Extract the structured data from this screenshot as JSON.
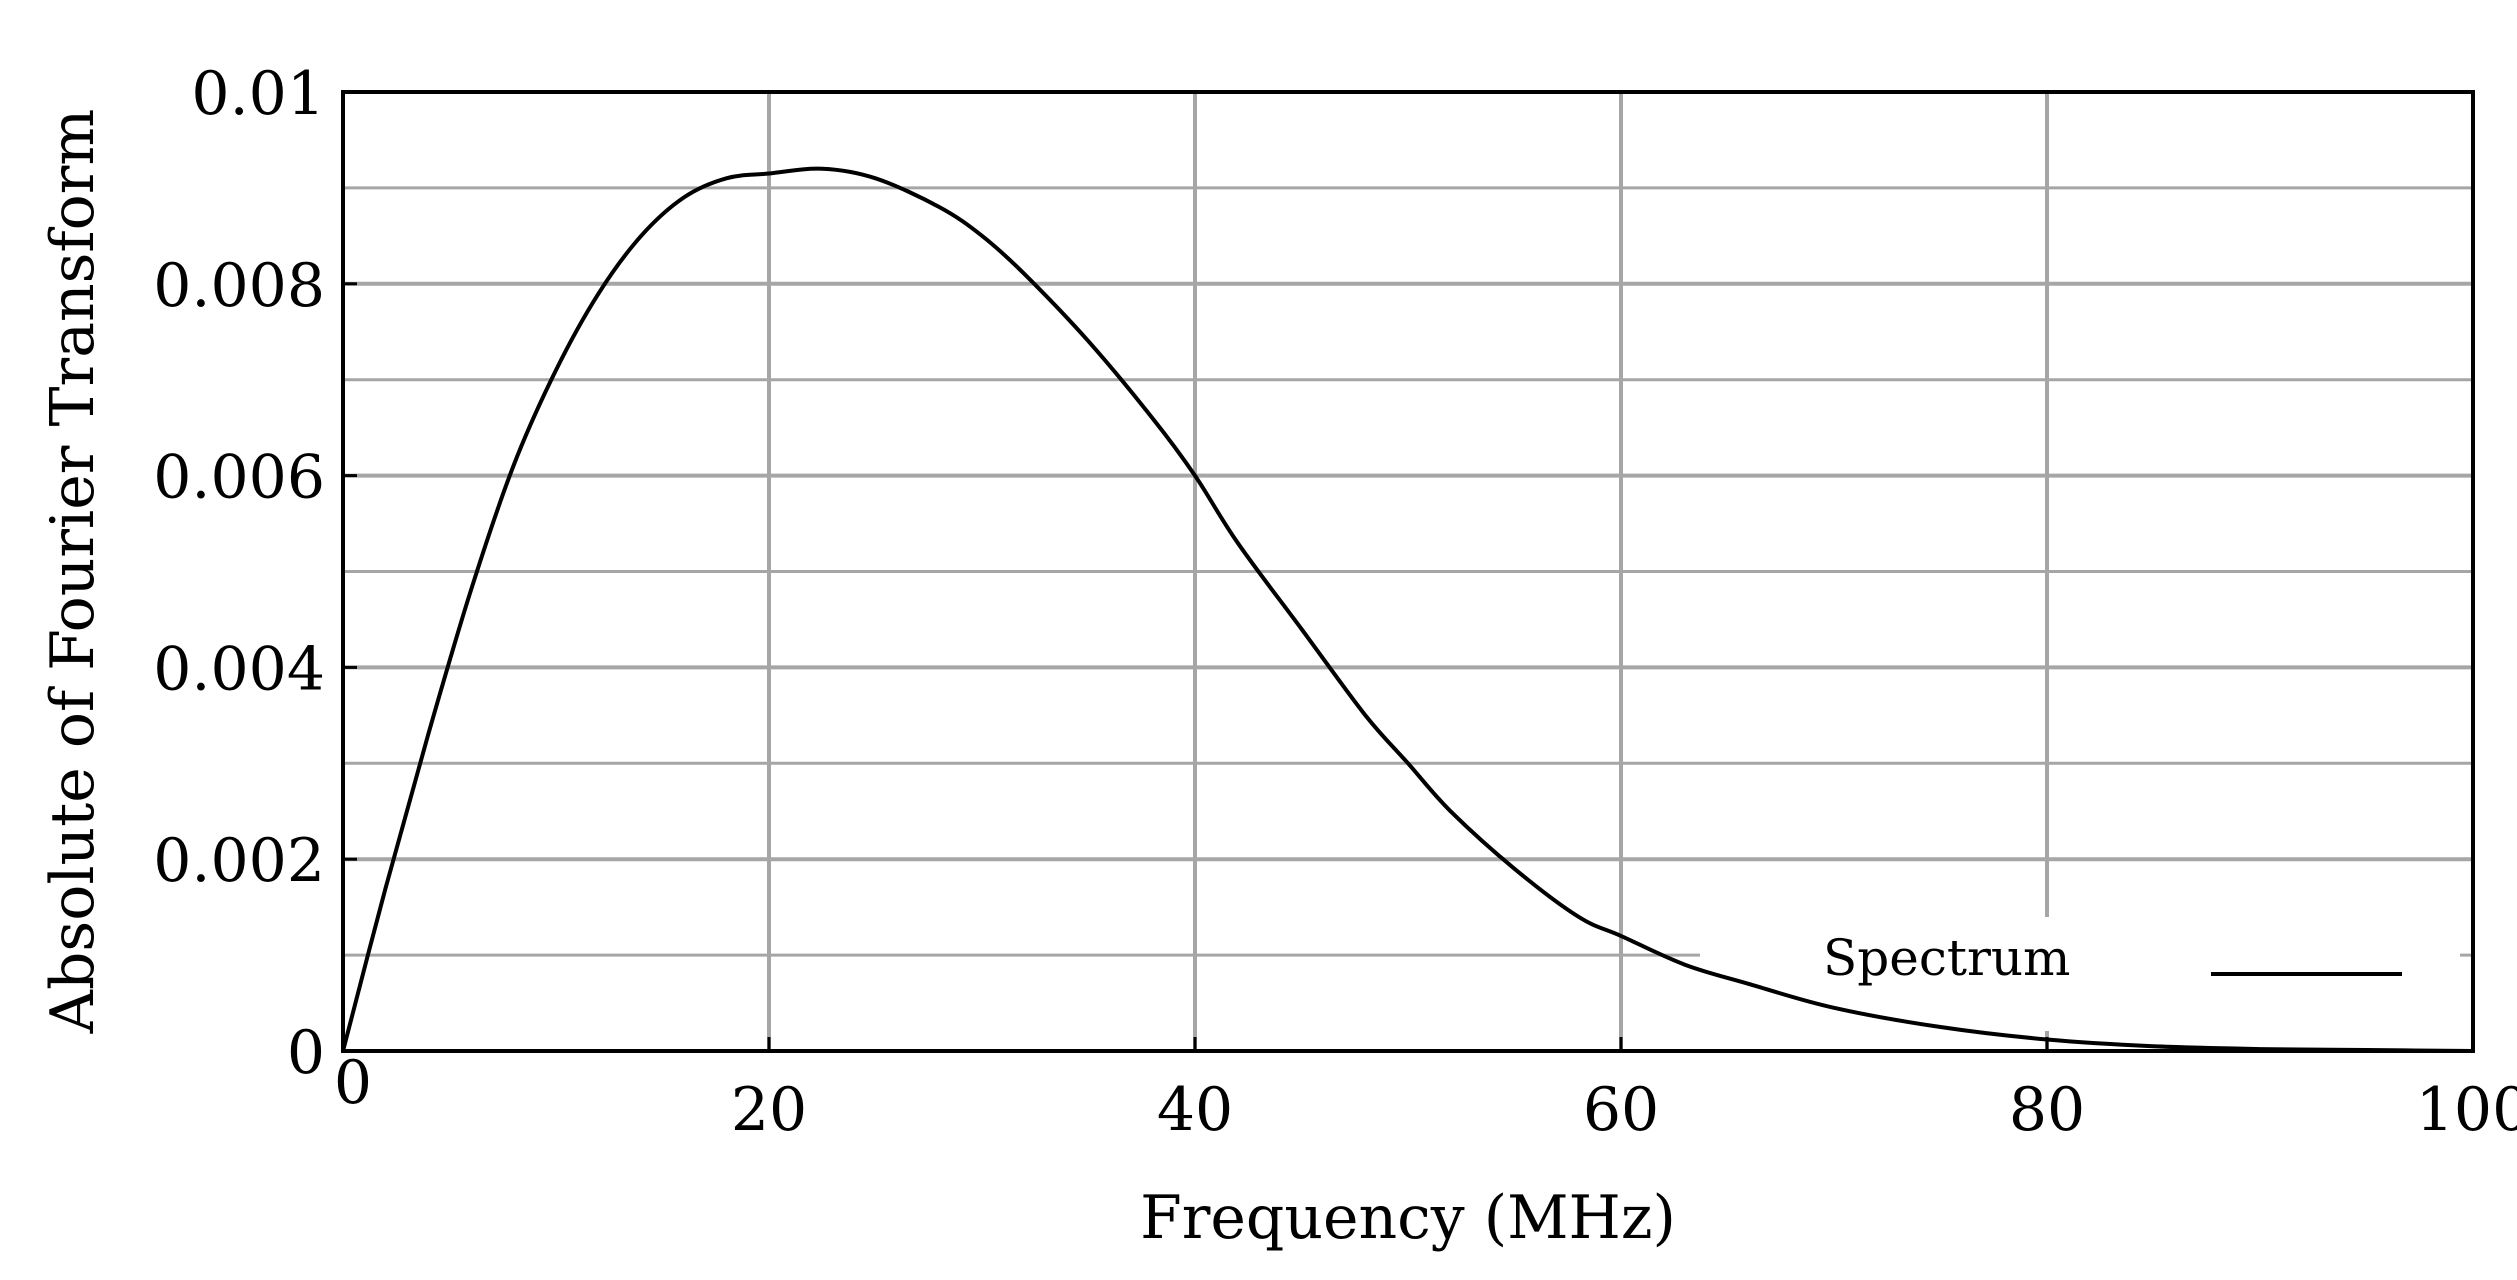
{
  "chart_data": {
    "type": "line",
    "title": "",
    "xlabel": "Frequency (MHz)",
    "ylabel": "Absolute of Fourier Transform",
    "xlim": [
      0,
      100
    ],
    "ylim": [
      0,
      0.01
    ],
    "x_ticks": [
      0,
      20,
      40,
      60,
      80,
      100
    ],
    "x_tick_labels": [
      "0",
      "20",
      "40",
      "60",
      "80",
      "100"
    ],
    "y_ticks": [
      0,
      0.002,
      0.004,
      0.006,
      0.008,
      0.01
    ],
    "y_tick_labels": [
      "0",
      "0.002",
      "0.004",
      "0.006",
      "0.008",
      "0.01"
    ],
    "y_minor_ticks": [
      0.001,
      0.003,
      0.005,
      0.007,
      0.009
    ],
    "grid": true,
    "legend": {
      "position": "bottom-right",
      "entries": [
        "Spectrum"
      ]
    },
    "series": [
      {
        "name": "Spectrum",
        "color": "#000000",
        "x": [
          0,
          2,
          4,
          6,
          8,
          10,
          12,
          14,
          16,
          18,
          20,
          22.5,
          25,
          28,
          30,
          32,
          35,
          38,
          40,
          42,
          45,
          48,
          50,
          52,
          55,
          58,
          60,
          63,
          66,
          70,
          75,
          80,
          85,
          90,
          95,
          100
        ],
        "y": [
          0,
          0.0017,
          0.0033,
          0.0048,
          0.0061,
          0.0071,
          0.0079,
          0.0085,
          0.0089,
          0.0091,
          0.00915,
          0.0092,
          0.0091,
          0.0088,
          0.0085,
          0.0081,
          0.0074,
          0.0066,
          0.006,
          0.0053,
          0.0044,
          0.0035,
          0.003,
          0.0025,
          0.0019,
          0.0014,
          0.0012,
          0.0009,
          0.0007,
          0.00045,
          0.00025,
          0.00012,
          5e-05,
          2e-05,
          1e-05,
          0
        ]
      }
    ]
  }
}
